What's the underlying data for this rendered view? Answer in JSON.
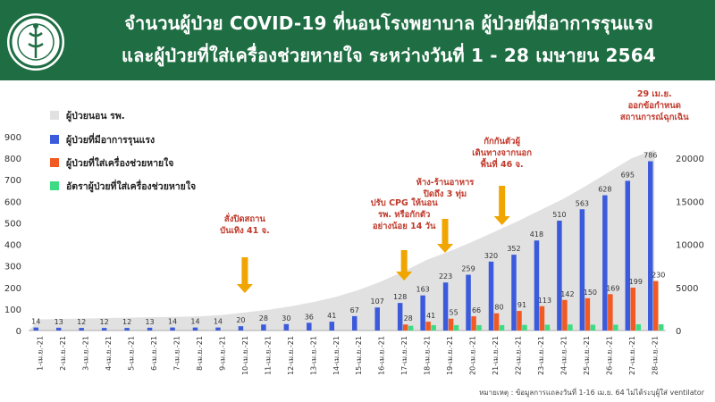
{
  "header": {
    "title_line1": "จำนวนผู้ป่วย COVID-19 ที่นอนโรงพยาบาล ผู้ป่วยที่มีอาการรุนแรง",
    "title_line2": "และผู้ป่วยที่ใส่เครื่องช่วยหายใจ ระหว่างวันที่ 1 -  28 เมษายน 2564",
    "bg_color": "#1f6e43",
    "logo_icon": "department-of-disease-control-logo"
  },
  "note": "หมายเหตุ : ข้อมูลการแถลงวันที่ 1-16 เม.ย. 64 ไม่ได้ระบุผู้ใส่ ventilator",
  "chart_data": {
    "type": "bar",
    "categories": [
      "1-เม.ย.-21",
      "2-เม.ย.-21",
      "3-เม.ย.-21",
      "4-เม.ย.-21",
      "5-เม.ย.-21",
      "6-เม.ย.-21",
      "7-เม.ย.-21",
      "8-เม.ย.-21",
      "9-เม.ย.-21",
      "10-เม.ย.-21",
      "11-เม.ย.-21",
      "12-เม.ย.-21",
      "13-เม.ย.-21",
      "14-เม.ย.-21",
      "15-เม.ย.-21",
      "16-เม.ย.-21",
      "17-เม.ย.-21",
      "18-เม.ย.-21",
      "19-เม.ย.-21",
      "20-เม.ย.-21",
      "21-เม.ย.-21",
      "22-เม.ย.-21",
      "23-เม.ย.-21",
      "24-เม.ย.-21",
      "25-เม.ย.-21",
      "26-เม.ย.-21",
      "27-เม.ย.-21",
      "28-เม.ย.-21"
    ],
    "series": [
      {
        "name": "ผู้ป่วยนอน รพ.",
        "type": "area",
        "axis": "right",
        "color": "#e1e1e1",
        "values": [
          1300,
          1350,
          1400,
          1450,
          1500,
          1550,
          1600,
          1650,
          1800,
          2100,
          2400,
          2800,
          3300,
          3900,
          4700,
          5700,
          6900,
          8200,
          9200,
          10300,
          11500,
          12700,
          14000,
          15300,
          16800,
          18400,
          20000,
          21000
        ]
      },
      {
        "name": "ผู้ป่วยที่มีอาการรุนแรง",
        "type": "bar",
        "axis": "left",
        "color": "#3b5bdc",
        "values": [
          14,
          13,
          12,
          12,
          12,
          13,
          14,
          14,
          14,
          20,
          28,
          30,
          36,
          41,
          67,
          107,
          128,
          163,
          223,
          259,
          320,
          352,
          418,
          510,
          563,
          628,
          695,
          786
        ]
      },
      {
        "name": "ผู้ป่วยที่ใส่เครื่องช่วยหายใจ",
        "type": "bar",
        "axis": "left",
        "color": "#f15a22",
        "values": [
          null,
          null,
          null,
          null,
          null,
          null,
          null,
          null,
          null,
          null,
          null,
          null,
          null,
          null,
          null,
          null,
          28,
          41,
          55,
          66,
          80,
          91,
          113,
          142,
          150,
          169,
          199,
          230
        ]
      },
      {
        "name": "อัตราผู้ป่วยที่ใส่เครื่องช่วยหายใจ",
        "type": "bar",
        "axis": "left",
        "color": "#3ddc84",
        "values": [
          null,
          null,
          null,
          null,
          null,
          null,
          null,
          null,
          null,
          null,
          null,
          null,
          null,
          null,
          null,
          null,
          22,
          25,
          25,
          25,
          25,
          26,
          27,
          28,
          27,
          27,
          29,
          29
        ]
      }
    ],
    "yticks_left": [
      "0",
      "100",
      "200",
      "300",
      "400",
      "500",
      "600",
      "700",
      "800",
      "900"
    ],
    "ylim_left": [
      0,
      900
    ],
    "yticks_right": [
      "0",
      "5000",
      "10000",
      "15000",
      "20000"
    ],
    "ylim_right": [
      0,
      22500
    ],
    "legend_position": "top-left",
    "annotations": [
      {
        "text": "สั่งปิดสถาน\nบันเทิง 41 จ.",
        "index": 9,
        "arrow": true
      },
      {
        "text": "ปรับ CPG ให้นอน\nรพ. หรือกักตัว\nอย่างน้อย 14 วัน",
        "index": 16,
        "arrow": true
      },
      {
        "text": "ห้าง-ร้านอาหาร\nปิดถึง 3 ทุ่ม",
        "index": 17.8,
        "arrow": true
      },
      {
        "text": "กักกันตัวผู้\nเดินทางจากนอก\nพื้นที่ 46 จ.",
        "index": 20.3,
        "arrow": true
      },
      {
        "text": "29 เม.ย.\nออกข้อกำหนด\nสถานการณ์ฉุกเฉิน",
        "index": 27,
        "arrow": false
      }
    ],
    "annotation_color": "#c0392b",
    "arrow_color": "#f0a500"
  }
}
